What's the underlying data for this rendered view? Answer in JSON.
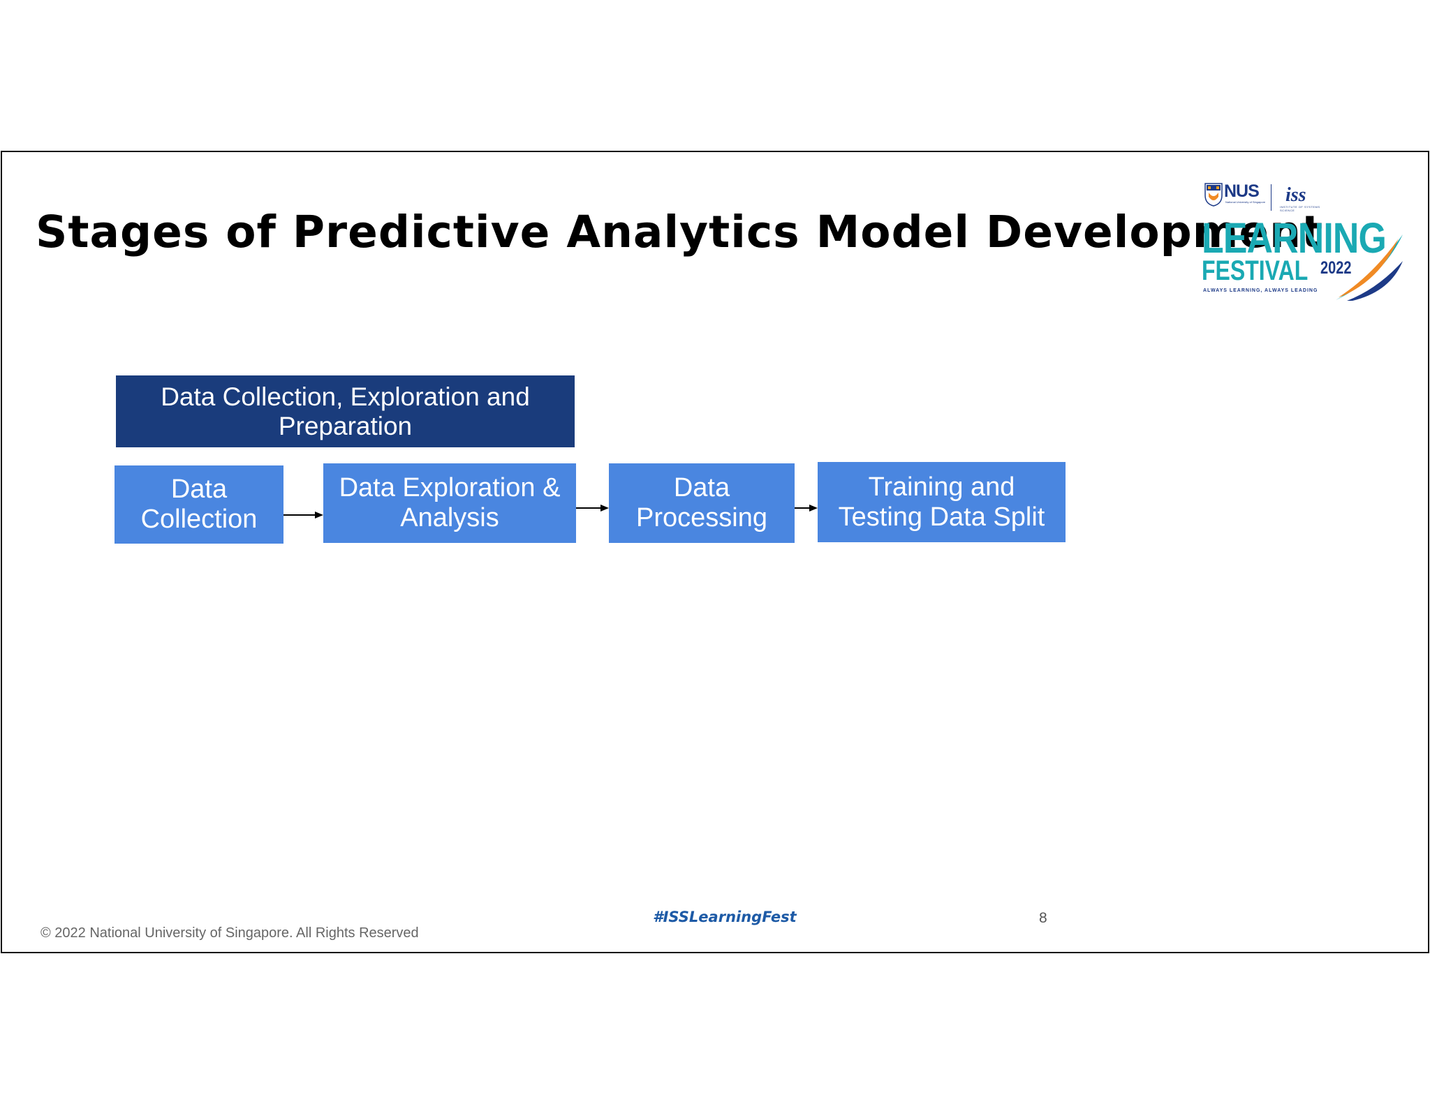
{
  "slide": {
    "title": "Stages of Predictive Analytics Model Development",
    "hashtag": "#ISSLearningFest",
    "page_number": "8",
    "copyright": "© 2022 National University of Singapore. All Rights Reserved"
  },
  "logo": {
    "nus": "NUS",
    "nus_sub": "National University of Singapore",
    "iss": "iss",
    "iss_sub": "INSTITUTE OF SYSTEMS SCIENCE",
    "learning": "LEARNING",
    "festival": "FESTIVAL",
    "year": "2022",
    "tagline": "ALWAYS LEARNING, ALWAYS LEADING"
  },
  "diagram": {
    "group_label": "Data Collection, Exploration and Preparation",
    "stages": [
      {
        "label": "Data Collection"
      },
      {
        "label": "Data Exploration & Analysis"
      },
      {
        "label": "Data Processing"
      },
      {
        "label": "Training and Testing Data Split"
      }
    ]
  },
  "colors": {
    "group_box": "#1a3c7c",
    "stage_box": "#4a86e0",
    "logo_teal": "#1aa9b3",
    "logo_navy": "#1d3a87",
    "logo_orange": "#f08a24",
    "hashtag": "#1d5aa6"
  }
}
